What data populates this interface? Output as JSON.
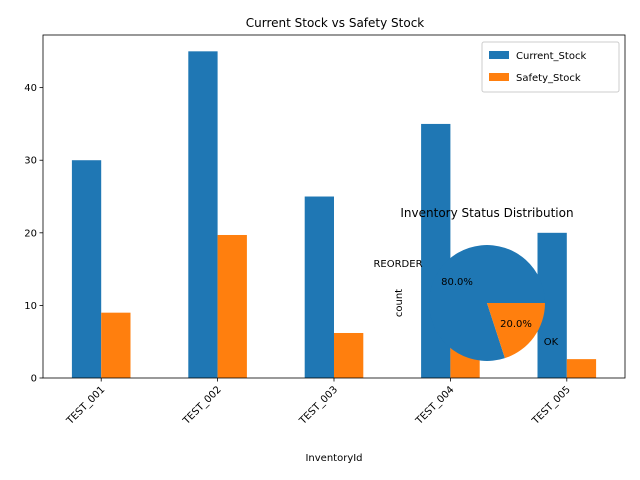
{
  "chart_data": [
    {
      "type": "bar",
      "title": "Current Stock vs Safety Stock",
      "xlabel": "InventoryId",
      "ylabel": "",
      "categories": [
        "TEST_001",
        "TEST_002",
        "TEST_003",
        "TEST_004",
        "TEST_005"
      ],
      "series": [
        {
          "name": "Current_Stock",
          "values": [
            30,
            45,
            25,
            35,
            20
          ],
          "color": "#1f77b4"
        },
        {
          "name": "Safety_Stock",
          "values": [
            9,
            19.7,
            6.2,
            10.4,
            2.6
          ],
          "color": "#ff7f0e"
        }
      ],
      "ylim": [
        0,
        47.25
      ],
      "yticks": [
        "0",
        "10",
        "20",
        "30",
        "40"
      ],
      "legend": "top-right",
      "grid": false
    },
    {
      "type": "pie",
      "title": "Inventory Status Distribution",
      "ylabel": "count",
      "slices": [
        {
          "label": "REORDER",
          "value": 80,
          "pct_label": "80.0%",
          "color": "#1f77b4"
        },
        {
          "label": "OK",
          "value": 20,
          "pct_label": "20.0%",
          "color": "#ff7f0e"
        }
      ]
    }
  ]
}
